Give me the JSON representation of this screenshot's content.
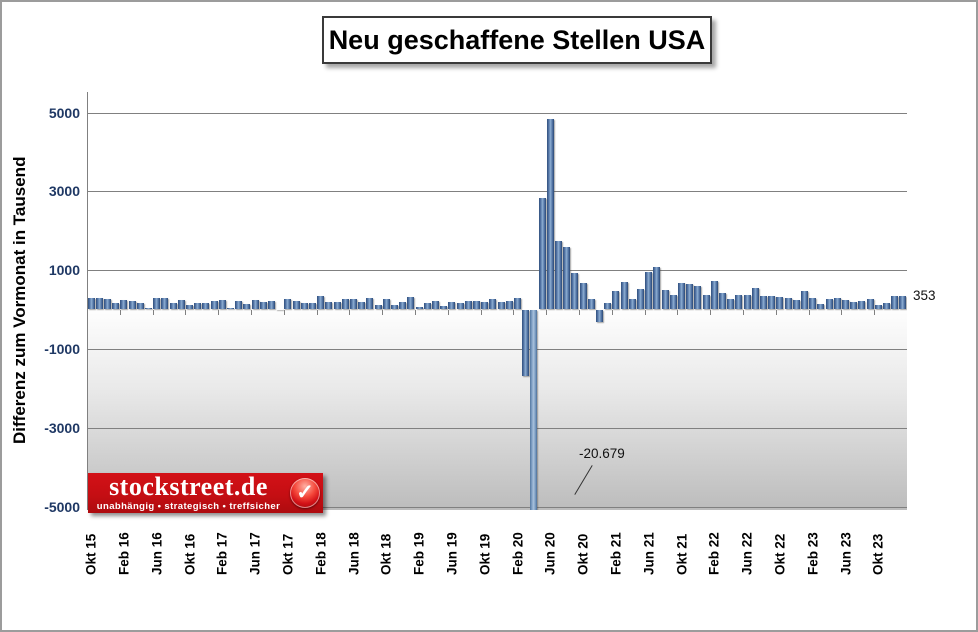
{
  "title": "Neu geschaffene Stellen USA",
  "y_axis": {
    "title": "Differenz zum Vormonat in Tausend",
    "tick_values": [
      5000,
      3000,
      1000,
      -1000,
      -3000,
      -5000
    ]
  },
  "annotations": {
    "min_value_label": "-20.679",
    "latest_value_label": "353"
  },
  "logo": {
    "brand": "stockstreet.de",
    "tagline": "unabhängig • strategisch • treffsicher",
    "checkmark": "✓"
  },
  "colors": {
    "bar_dark": "#2b4a74",
    "bar_light": "#92b1d4",
    "grid": "#808080",
    "y_label_blue": "#1f3864",
    "logo_red": "#c50e13",
    "title_border": "#3a3a3a"
  },
  "chart_data": {
    "type": "bar",
    "title": "Neu geschaffene Stellen USA",
    "xlabel": "",
    "ylabel": "Differenz zum Vormonat in Tausend",
    "ylim": [
      -5000,
      5000
    ],
    "grid": true,
    "x_tick_every": 4,
    "x_tick_labels": [
      "Okt 15",
      "Feb 16",
      "Jun 16",
      "Okt 16",
      "Feb 17",
      "Jun 17",
      "Okt 17",
      "Feb 18",
      "Jun 18",
      "Okt 18",
      "Feb 19",
      "Jun 19",
      "Okt 19",
      "Feb 20",
      "Jun 20",
      "Okt 20",
      "Feb 21",
      "Jun 21",
      "Okt 21",
      "Feb 22",
      "Jun 22",
      "Okt 22",
      "Feb 23",
      "Jun 23",
      "Okt 23"
    ],
    "series_name": "Neu geschaffene Stellen USA (Differenz zum Vormonat in Tausend)",
    "months": [
      "Okt 15",
      "Nov 15",
      "Dez 15",
      "Jan 16",
      "Feb 16",
      "Mär 16",
      "Apr 16",
      "Mai 16",
      "Jun 16",
      "Jul 16",
      "Aug 16",
      "Sep 16",
      "Okt 16",
      "Nov 16",
      "Dez 16",
      "Jan 17",
      "Feb 17",
      "Mär 17",
      "Apr 17",
      "Mai 17",
      "Jun 17",
      "Jul 17",
      "Aug 17",
      "Sep 17",
      "Okt 17",
      "Nov 17",
      "Dez 17",
      "Jan 18",
      "Feb 18",
      "Mär 18",
      "Apr 18",
      "Mai 18",
      "Jun 18",
      "Jul 18",
      "Aug 18",
      "Sep 18",
      "Okt 18",
      "Nov 18",
      "Dez 18",
      "Jan 19",
      "Feb 19",
      "Mär 19",
      "Apr 19",
      "Mai 19",
      "Jun 19",
      "Jul 19",
      "Aug 19",
      "Sep 19",
      "Okt 19",
      "Nov 19",
      "Dez 19",
      "Jan 20",
      "Feb 20",
      "Mär 20",
      "Apr 20",
      "Mai 20",
      "Jun 20",
      "Jul 20",
      "Aug 20",
      "Sep 20",
      "Okt 20",
      "Nov 20",
      "Dez 20",
      "Jan 21",
      "Feb 21",
      "Mär 21",
      "Apr 21",
      "Mai 21",
      "Jun 21",
      "Jul 21",
      "Aug 21",
      "Sep 21",
      "Okt 21",
      "Nov 21",
      "Dez 21",
      "Jan 22",
      "Feb 22",
      "Mär 22",
      "Apr 22",
      "Mai 22",
      "Jun 22",
      "Jul 22",
      "Aug 22",
      "Sep 22",
      "Okt 22",
      "Nov 22",
      "Dez 22",
      "Jan 23",
      "Feb 23",
      "Mär 23",
      "Apr 23",
      "Mai 23",
      "Jun 23",
      "Jul 23",
      "Aug 23",
      "Sep 23",
      "Okt 23",
      "Nov 23",
      "Dez 23",
      "Jan 24"
    ],
    "values": [
      298,
      280,
      271,
      168,
      233,
      225,
      153,
      43,
      297,
      291,
      176,
      249,
      124,
      164,
      155,
      216,
      232,
      50,
      207,
      145,
      239,
      190,
      208,
      18,
      261,
      216,
      175,
      171,
      330,
      182,
      196,
      270,
      262,
      178,
      282,
      108,
      277,
      119,
      182,
      312,
      56,
      153,
      216,
      85,
      182,
      166,
      219,
      208,
      185,
      261,
      184,
      214,
      289,
      -1683,
      -20679,
      2833,
      4846,
      1726,
      1583,
      919,
      680,
      264,
      -306,
      157,
      478,
      704,
      263,
      520,
      962,
      1091,
      483,
      379,
      677,
      647,
      588,
      364,
      714,
      414,
      254,
      364,
      370,
      537,
      352,
      350,
      324,
      290,
      239,
      482,
      287,
      146,
      278,
      303,
      240,
      184,
      210,
      262,
      105,
      173,
      333,
      353
    ]
  }
}
